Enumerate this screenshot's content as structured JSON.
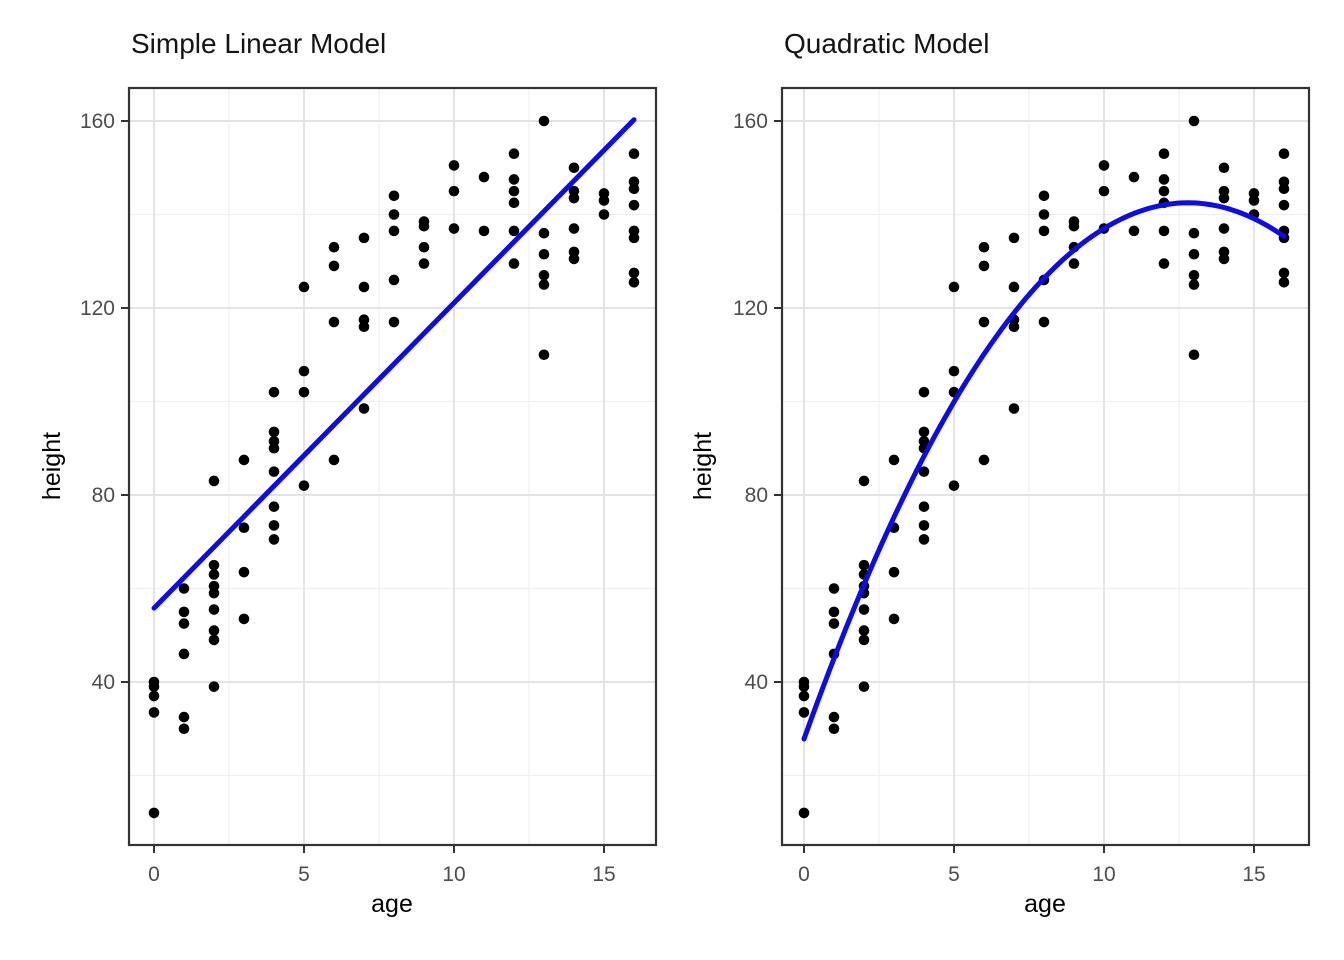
{
  "figure": {
    "background_color": "#ffffff",
    "panel_border_color": "#333333",
    "grid_major_color": "#e4e4e4",
    "grid_minor_color": "#f0f0f0",
    "tick_mark_color": "#333333",
    "tick_label_color": "#4d4d4d",
    "point_color": "#000000",
    "fit_line_color": "#0b0bee"
  },
  "chart_data": {
    "type": "scatter",
    "shared_points_note": "both panels plot the same age/height observations",
    "points": [
      [
        0,
        40
      ],
      [
        0,
        39
      ],
      [
        0,
        37
      ],
      [
        0,
        33.5
      ],
      [
        0,
        12
      ],
      [
        1,
        60
      ],
      [
        1,
        55
      ],
      [
        1,
        52.5
      ],
      [
        1,
        46
      ],
      [
        1,
        32.5
      ],
      [
        1,
        30
      ],
      [
        2,
        83
      ],
      [
        2,
        65
      ],
      [
        2,
        63
      ],
      [
        2,
        60.5
      ],
      [
        2,
        59
      ],
      [
        2,
        55.5
      ],
      [
        2,
        51
      ],
      [
        2,
        49
      ],
      [
        2,
        39
      ],
      [
        3,
        87.5
      ],
      [
        3,
        73
      ],
      [
        3,
        63.5
      ],
      [
        3,
        53.5
      ],
      [
        4,
        102
      ],
      [
        4,
        93.5
      ],
      [
        4,
        91.5
      ],
      [
        4,
        90
      ],
      [
        4,
        85
      ],
      [
        4,
        77.5
      ],
      [
        4,
        73.5
      ],
      [
        4,
        70.5
      ],
      [
        5,
        124.5
      ],
      [
        5,
        106.5
      ],
      [
        5,
        102
      ],
      [
        5,
        82
      ],
      [
        6,
        133
      ],
      [
        6,
        129
      ],
      [
        6,
        117
      ],
      [
        6,
        87.5
      ],
      [
        7,
        135
      ],
      [
        7,
        124.5
      ],
      [
        7,
        117.5
      ],
      [
        7,
        116
      ],
      [
        7,
        98.5
      ],
      [
        8,
        144
      ],
      [
        8,
        140
      ],
      [
        8,
        136.5
      ],
      [
        8,
        126
      ],
      [
        8,
        117
      ],
      [
        9,
        138.5
      ],
      [
        9,
        137.5
      ],
      [
        9,
        133
      ],
      [
        9,
        129.5
      ],
      [
        10,
        150.5
      ],
      [
        10,
        145
      ],
      [
        10,
        137
      ],
      [
        11,
        148
      ],
      [
        11,
        136.5
      ],
      [
        12,
        153
      ],
      [
        12,
        147.5
      ],
      [
        12,
        145
      ],
      [
        12,
        142.5
      ],
      [
        12,
        136.5
      ],
      [
        12,
        129.5
      ],
      [
        13,
        160
      ],
      [
        13,
        136
      ],
      [
        13,
        131.5
      ],
      [
        13,
        127
      ],
      [
        13,
        125
      ],
      [
        13,
        110
      ],
      [
        14,
        150
      ],
      [
        14,
        145
      ],
      [
        14,
        143.5
      ],
      [
        14,
        137
      ],
      [
        14,
        132
      ],
      [
        14,
        130.5
      ],
      [
        15,
        144.5
      ],
      [
        15,
        143
      ],
      [
        15,
        140
      ],
      [
        16,
        153
      ],
      [
        16,
        147
      ],
      [
        16,
        145.5
      ],
      [
        16,
        142
      ],
      [
        16,
        136.5
      ],
      [
        16,
        135
      ],
      [
        16,
        127.5
      ],
      [
        16,
        125.5
      ]
    ],
    "panels": [
      {
        "title": "Simple Linear Model",
        "xlabel": "age",
        "ylabel": "height",
        "x_ticks": [
          0,
          5,
          10,
          15
        ],
        "y_ticks": [
          40,
          80,
          120,
          160
        ],
        "x_minor": [
          2.5,
          7.5,
          12.5
        ],
        "y_minor": [
          20,
          60,
          100,
          140
        ],
        "xlim": [
          -0.83,
          16.73
        ],
        "ylim": [
          5,
          167
        ],
        "fit": {
          "kind": "linear",
          "intercept": 55.8,
          "slope": 6.53,
          "x_range": [
            0,
            16
          ]
        }
      },
      {
        "title": "Quadratic Model",
        "xlabel": "age",
        "ylabel": "height",
        "x_ticks": [
          0,
          5,
          10,
          15
        ],
        "y_ticks": [
          40,
          80,
          120,
          160
        ],
        "x_minor": [
          2.5,
          7.5,
          12.5
        ],
        "y_minor": [
          20,
          60,
          100,
          140
        ],
        "xlim": [
          -0.73,
          16.83
        ],
        "ylim": [
          5,
          167
        ],
        "fit": {
          "kind": "quadratic",
          "vertex_age": 12.8,
          "vertex_height": 142.5,
          "curvature": -0.7,
          "x_range": [
            0,
            16
          ]
        }
      }
    ]
  }
}
